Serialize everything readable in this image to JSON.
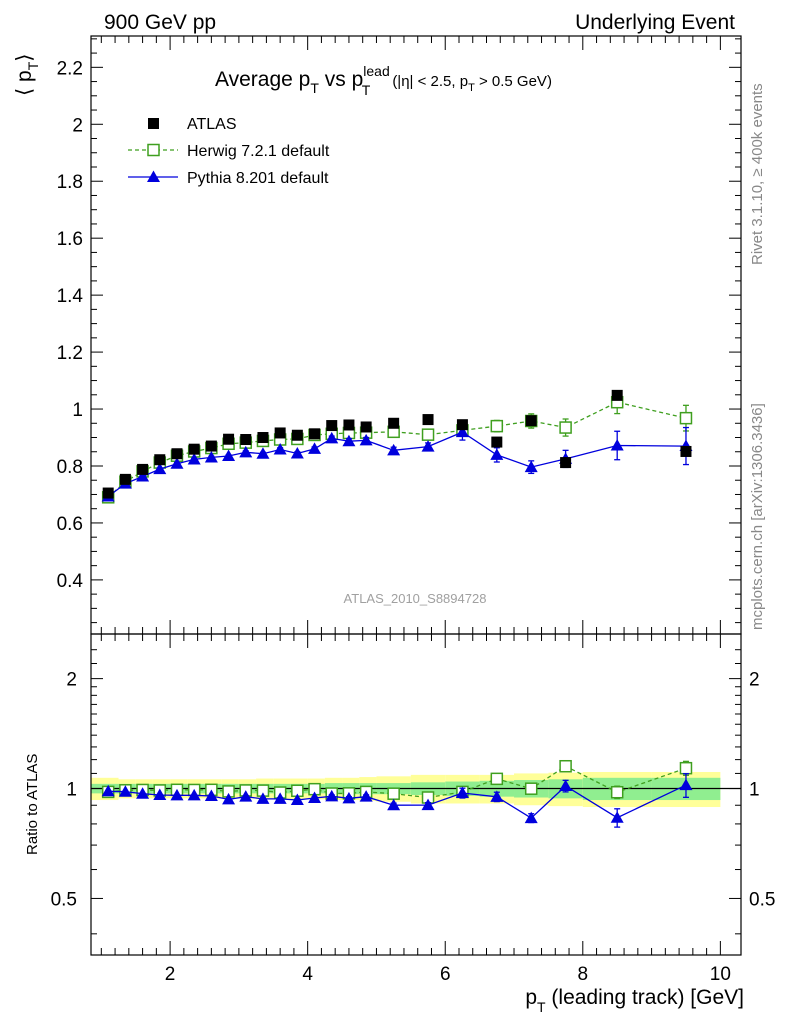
{
  "header": {
    "left_label": "900 GeV pp",
    "right_label": "Underlying Event"
  },
  "side_labels": {
    "rivet": "Rivet 3.1.10, ≥ 400k events",
    "mcplots": "mcplots.cern.ch [arXiv:1306.3436]"
  },
  "colors": {
    "data": "#000000",
    "herwig": "#3f9f1f",
    "pythia": "#0000dd",
    "band_inner": "#90ee90",
    "band_outer": "#ffff99"
  },
  "chart_data": [
    {
      "type": "scatter",
      "panel": "main",
      "title_parts": {
        "main": "Average p",
        "sub1": "T",
        "mid": " vs p",
        "sup": "lead",
        "sub2": "T",
        "cut_a": "(|η| < 2.5, p",
        "cut_sub": "T",
        "cut_b": " > 0.5 GeV)"
      },
      "ylabel_parts": {
        "open": "⟨ p",
        "sub": "T",
        "close": "⟩"
      },
      "watermark": "ATLAS_2010_S8894728",
      "xlim": [
        0.85,
        10.3
      ],
      "ylim": [
        0.21,
        2.31
      ],
      "yticks": [
        0.4,
        0.6,
        0.8,
        1,
        1.2,
        1.4,
        1.6,
        1.8,
        2,
        2.2
      ],
      "ytick_labels": [
        "0.4",
        "0.6",
        "0.8",
        "1",
        "1.2",
        "1.4",
        "1.6",
        "1.8",
        "2",
        "2.2"
      ],
      "legend_position": "top-left",
      "x": [
        1.1,
        1.35,
        1.6,
        1.85,
        2.1,
        2.35,
        2.6,
        2.85,
        3.1,
        3.35,
        3.6,
        3.85,
        4.1,
        4.35,
        4.6,
        4.85,
        5.25,
        5.75,
        6.25,
        6.75,
        7.25,
        7.75,
        8.5,
        9.5
      ],
      "series": [
        {
          "name": "ATLAS",
          "style": "data",
          "values": [
            0.705,
            0.753,
            0.788,
            0.822,
            0.843,
            0.859,
            0.87,
            0.894,
            0.893,
            0.9,
            0.916,
            0.908,
            0.913,
            0.942,
            0.944,
            0.937,
            0.95,
            0.963,
            0.945,
            0.884,
            0.959,
            0.812,
            1.048,
            0.851
          ]
        },
        {
          "name": "Herwig 7.2.1 default",
          "style": "herwig",
          "values": [
            0.69,
            0.745,
            0.781,
            0.812,
            0.836,
            0.851,
            0.863,
            0.878,
            0.882,
            0.888,
            0.893,
            0.895,
            0.909,
            0.913,
            0.916,
            0.917,
            0.92,
            0.91,
            0.925,
            0.94,
            0.958,
            0.935,
            1.024,
            0.968
          ],
          "errors": [
            0.004,
            0.004,
            0.004,
            0.004,
            0.004,
            0.004,
            0.004,
            0.004,
            0.005,
            0.005,
            0.006,
            0.006,
            0.007,
            0.008,
            0.009,
            0.01,
            0.011,
            0.013,
            0.016,
            0.02,
            0.025,
            0.03,
            0.04,
            0.045
          ]
        },
        {
          "name": "Pythia 8.201 default",
          "style": "pythia",
          "values": [
            0.693,
            0.738,
            0.763,
            0.789,
            0.808,
            0.823,
            0.83,
            0.835,
            0.848,
            0.843,
            0.858,
            0.844,
            0.86,
            0.897,
            0.887,
            0.89,
            0.855,
            0.868,
            0.919,
            0.839,
            0.796,
            0.825,
            0.872,
            0.87
          ],
          "errors": [
            0.004,
            0.004,
            0.004,
            0.004,
            0.004,
            0.004,
            0.004,
            0.004,
            0.005,
            0.005,
            0.006,
            0.006,
            0.007,
            0.008,
            0.009,
            0.01,
            0.011,
            0.013,
            0.028,
            0.025,
            0.022,
            0.03,
            0.05,
            0.065
          ]
        }
      ]
    },
    {
      "type": "scatter",
      "panel": "ratio",
      "ylabel": "Ratio to ATLAS",
      "xlabel_parts": {
        "main": "p",
        "sub": "T",
        "rest": " (leading track) [GeV]"
      },
      "xlim": [
        0.85,
        10.3
      ],
      "ylim": [
        0.35,
        2.65
      ],
      "log_y": true,
      "xticks": [
        2,
        4,
        6,
        8,
        10
      ],
      "xtick_labels": [
        "2",
        "4",
        "6",
        "8",
        "10"
      ],
      "yticks": [
        0.5,
        1,
        2
      ],
      "ytick_labels": [
        "0.5",
        "1",
        "2"
      ],
      "band_bins": [
        0.85,
        1.25,
        1.5,
        1.75,
        2.0,
        2.25,
        2.5,
        2.75,
        3.0,
        3.25,
        3.5,
        3.75,
        4.0,
        4.25,
        4.5,
        4.75,
        5.0,
        5.5,
        6.0,
        6.5,
        7.0,
        7.5,
        8.0,
        9.0,
        10.0
      ],
      "band_inner_halfwidth": [
        0.03,
        0.03,
        0.03,
        0.03,
        0.03,
        0.03,
        0.03,
        0.03,
        0.03,
        0.03,
        0.03,
        0.03,
        0.03,
        0.035,
        0.035,
        0.035,
        0.035,
        0.04,
        0.045,
        0.05,
        0.055,
        0.06,
        0.07,
        0.07
      ],
      "band_outer_halfwidth": [
        0.07,
        0.06,
        0.06,
        0.06,
        0.06,
        0.06,
        0.06,
        0.06,
        0.06,
        0.065,
        0.065,
        0.065,
        0.065,
        0.07,
        0.07,
        0.075,
        0.08,
        0.09,
        0.09,
        0.09,
        0.1,
        0.105,
        0.11,
        0.11
      ],
      "series": [
        {
          "name": "Herwig 7.2.1 default",
          "style": "herwig",
          "values": [
            0.979,
            0.989,
            0.991,
            0.988,
            0.992,
            0.991,
            0.992,
            0.982,
            0.988,
            0.987,
            0.975,
            0.986,
            0.996,
            0.969,
            0.97,
            0.979,
            0.968,
            0.945,
            0.979,
            1.063,
            0.999,
            1.151,
            0.977,
            1.137
          ],
          "errors": [
            0.005,
            0.005,
            0.005,
            0.005,
            0.005,
            0.005,
            0.005,
            0.005,
            0.006,
            0.006,
            0.007,
            0.007,
            0.008,
            0.009,
            0.01,
            0.011,
            0.012,
            0.014,
            0.017,
            0.022,
            0.027,
            0.035,
            0.038,
            0.05
          ]
        },
        {
          "name": "Pythia 8.201 default",
          "style": "pythia",
          "values": [
            0.983,
            0.98,
            0.968,
            0.96,
            0.958,
            0.958,
            0.954,
            0.934,
            0.95,
            0.937,
            0.937,
            0.93,
            0.942,
            0.952,
            0.94,
            0.95,
            0.9,
            0.901,
            0.972,
            0.949,
            0.83,
            1.016,
            0.832,
            1.022
          ],
          "errors": [
            0.005,
            0.005,
            0.005,
            0.005,
            0.005,
            0.005,
            0.005,
            0.005,
            0.006,
            0.006,
            0.007,
            0.007,
            0.008,
            0.009,
            0.01,
            0.011,
            0.012,
            0.014,
            0.03,
            0.028,
            0.023,
            0.037,
            0.048,
            0.076
          ]
        }
      ]
    }
  ]
}
